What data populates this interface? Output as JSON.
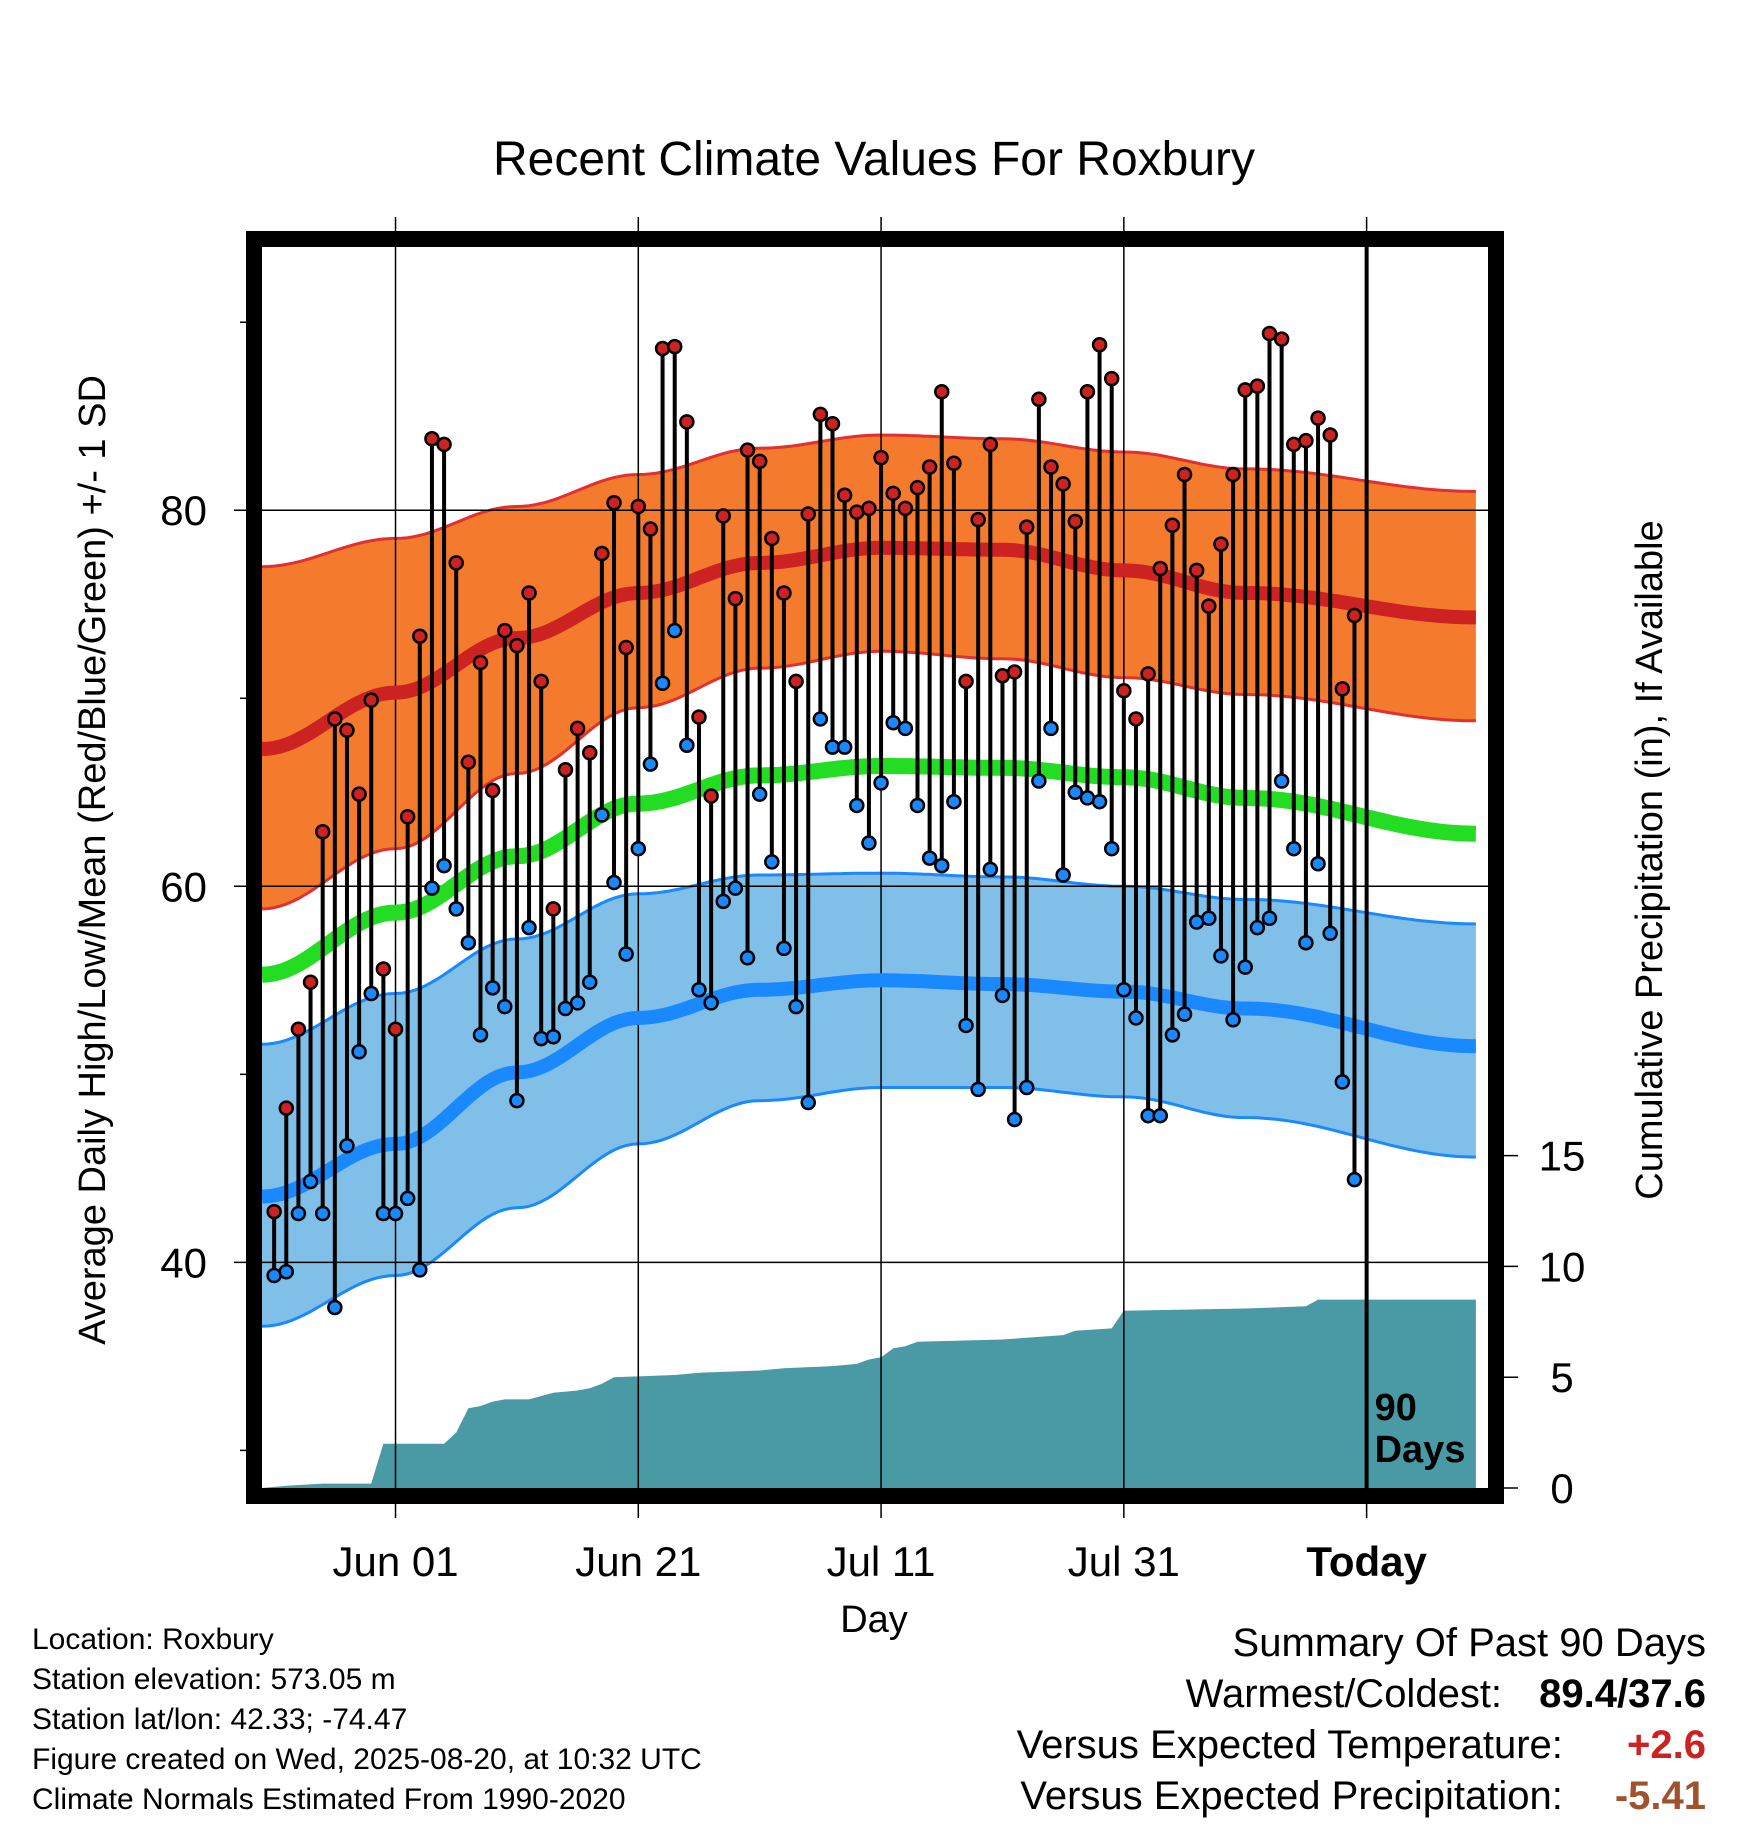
{
  "chart_data": {
    "type": "line",
    "title": "Recent Climate Values For Roxbury",
    "xlabel": "Day",
    "ylabel": "Average Daily High/Low/Mean (Red/Blue/Green) +/- 1 SD",
    "ylabel_right": "Cumulative Precipitation (in), If Available",
    "x_range_days": [
      -91,
      10
    ],
    "ylim": [
      28,
      94
    ],
    "y_ticks": [
      40,
      60,
      80
    ],
    "ylim_right": [
      0,
      56
    ],
    "y_ticks_right": [
      0,
      5,
      10,
      15
    ],
    "x_ticks": [
      {
        "day": -80,
        "label": "Jun 01"
      },
      {
        "day": -60,
        "label": "Jun 21"
      },
      {
        "day": -40,
        "label": "Jul 11"
      },
      {
        "day": -20,
        "label": "Jul 31"
      },
      {
        "day": 0,
        "label": "Today"
      }
    ],
    "today_marker_label": "90 Days",
    "grid": true,
    "normals": {
      "high_mean": [
        67.3,
        70.3,
        73.2,
        75.6,
        77.2,
        78.0,
        77.9,
        76.8,
        75.6,
        74.3
      ],
      "high_sd_top": [
        77.0,
        78.5,
        80.2,
        81.9,
        83.3,
        84.0,
        83.8,
        83.1,
        82.2,
        81.0
      ],
      "high_sd_bot": [
        58.8,
        62.0,
        66.0,
        69.5,
        71.6,
        72.5,
        72.1,
        71.1,
        70.2,
        68.8
      ],
      "mean": [
        55.3,
        58.6,
        61.6,
        64.4,
        65.9,
        66.4,
        66.3,
        65.8,
        64.7,
        62.8
      ],
      "low_mean": [
        43.5,
        46.3,
        50.1,
        53.0,
        54.5,
        55.0,
        54.8,
        54.4,
        53.5,
        51.5
      ],
      "low_sd_top": [
        51.6,
        54.3,
        57.2,
        59.6,
        60.6,
        60.7,
        60.5,
        60.0,
        59.3,
        58.0
      ],
      "low_sd_bot": [
        36.6,
        39.3,
        42.9,
        46.3,
        48.6,
        49.3,
        49.3,
        48.8,
        47.7,
        45.6
      ],
      "normals_days": [
        -91,
        -80,
        -70,
        -60,
        -50,
        -40,
        -30,
        -20,
        -10,
        9
      ]
    },
    "series": [
      {
        "name": "High",
        "color": "#cc2222",
        "values": [
          42.7,
          48.2,
          52.4,
          54.9,
          62.9,
          68.9,
          68.3,
          64.9,
          69.9,
          55.6,
          52.4,
          63.7,
          73.3,
          83.8,
          83.5,
          77.2,
          66.6,
          71.9,
          65.1,
          73.6,
          72.8,
          75.6,
          70.9,
          58.8,
          66.2,
          68.4,
          67.1,
          77.7,
          80.4,
          72.7,
          80.2,
          79.0,
          88.6,
          88.7,
          84.7,
          69.0,
          64.8,
          79.7,
          75.3,
          83.2,
          82.6,
          78.5,
          75.6,
          70.9,
          79.8,
          85.1,
          84.6,
          80.8,
          79.9,
          80.1,
          82.8,
          80.9,
          80.1,
          81.2,
          82.3,
          86.3,
          82.5,
          70.9,
          79.5,
          83.5,
          71.2,
          71.4,
          79.1,
          85.9,
          82.3,
          81.4,
          79.4,
          86.3,
          88.8,
          87.0,
          70.4,
          68.9,
          71.3,
          76.9,
          79.2,
          81.9,
          76.8,
          74.9,
          78.2,
          81.9,
          86.4,
          86.6,
          89.4,
          89.1,
          83.5,
          83.7,
          84.9,
          84.0,
          70.5,
          74.4
        ],
        "lows": [
          39.3,
          39.5,
          42.6,
          44.3,
          42.6,
          37.6,
          46.2,
          51.2,
          54.3,
          42.6,
          42.6,
          43.4,
          39.6,
          59.9,
          61.1,
          58.8,
          57.0,
          52.1,
          54.6,
          53.6,
          48.6,
          57.8,
          51.9,
          52.0,
          53.5,
          53.8,
          54.9,
          63.8,
          60.2,
          56.4,
          62.0,
          66.5,
          70.8,
          73.6,
          67.5,
          54.5,
          53.8,
          59.2,
          59.9,
          56.2,
          64.9,
          61.3,
          56.7,
          53.6,
          48.5,
          68.9,
          67.4,
          67.4,
          64.3,
          62.3,
          65.5,
          68.7,
          68.4,
          64.3,
          61.5,
          61.1,
          64.5,
          52.6,
          49.2,
          60.9,
          54.2,
          47.6,
          49.3,
          65.6,
          68.4,
          60.6,
          65.0,
          64.7,
          64.5,
          62.0,
          54.5,
          53.0,
          47.8,
          47.8,
          52.1,
          53.2,
          58.1,
          58.3,
          56.3,
          52.9,
          55.7,
          57.8,
          58.3,
          65.6,
          62.0,
          57.0,
          61.2,
          57.5,
          49.6,
          44.4
        ]
      },
      {
        "name": "Low"
      },
      {
        "name": "Mean"
      }
    ],
    "precip_cumulative": [
      [
        -91,
        0.0
      ],
      [
        -89,
        0.1
      ],
      [
        -86,
        0.2
      ],
      [
        -82,
        0.2
      ],
      [
        -81,
        2.0
      ],
      [
        -76,
        2.0
      ],
      [
        -75,
        2.5
      ],
      [
        -74,
        3.6
      ],
      [
        -73,
        3.7
      ],
      [
        -72,
        3.9
      ],
      [
        -71,
        4.0
      ],
      [
        -69,
        4.0
      ],
      [
        -67,
        4.3
      ],
      [
        -65,
        4.4
      ],
      [
        -64,
        4.5
      ],
      [
        -63,
        4.7
      ],
      [
        -62,
        5.0
      ],
      [
        -57,
        5.1
      ],
      [
        -55,
        5.2
      ],
      [
        -50,
        5.3
      ],
      [
        -48,
        5.4
      ],
      [
        -44,
        5.5
      ],
      [
        -42,
        5.6
      ],
      [
        -41,
        5.8
      ],
      [
        -40,
        5.9
      ],
      [
        -39,
        6.3
      ],
      [
        -38,
        6.4
      ],
      [
        -37,
        6.6
      ],
      [
        -30,
        6.7
      ],
      [
        -25,
        6.9
      ],
      [
        -24,
        7.1
      ],
      [
        -21,
        7.2
      ],
      [
        -20,
        8.0
      ],
      [
        -10,
        8.1
      ],
      [
        -5,
        8.2
      ],
      [
        -4,
        8.5
      ],
      [
        9,
        8.5
      ]
    ]
  },
  "info": {
    "location": "Location: Roxbury",
    "elevation": "Station elevation: 573.05 m",
    "latlon": "Station lat/lon: 42.33; -74.47",
    "created": "Figure created on Wed, 2025-08-20, at 10:32 UTC",
    "normals": "Climate Normals Estimated From 1990-2020"
  },
  "summary": {
    "heading": "Summary Of Past 90 Days",
    "warm_cold_label": "Warmest/Coldest:",
    "warm_cold_value": "89.4/37.6",
    "temp_label": "Versus Expected Temperature:",
    "temp_value": "+2.6",
    "temp_color": "#cc2222",
    "precip_label": "Versus Expected Precipitation:",
    "precip_value": "-5.41",
    "precip_color": "#a0522d"
  },
  "colors": {
    "high_band": "#f47a2e",
    "high_line": "#cc2222",
    "mean_line": "#22dd22",
    "low_band": "#80c0e8",
    "low_line": "#1a88ff",
    "precip_fill": "#4a9aa5",
    "high_dot": "#cc2222",
    "low_dot": "#1a88ff"
  }
}
